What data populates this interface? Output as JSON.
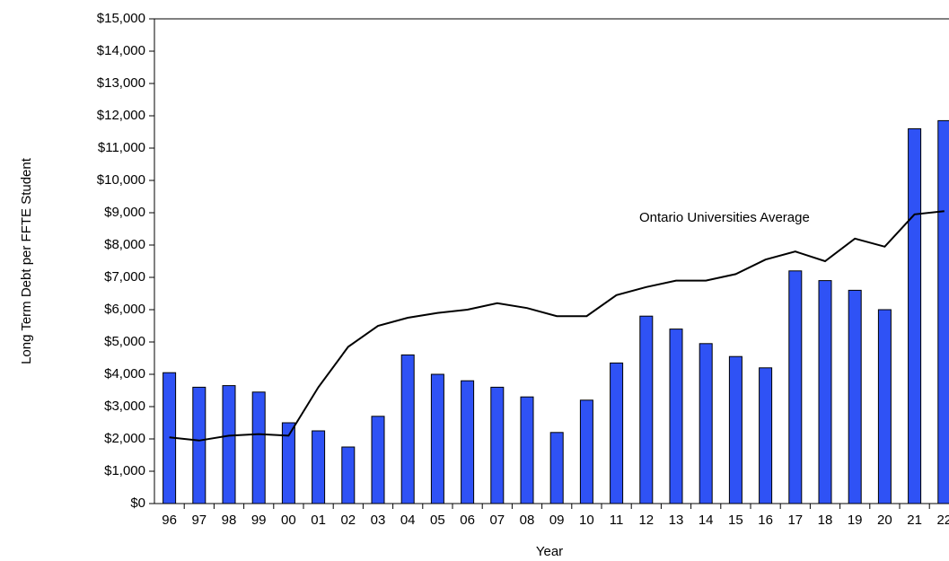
{
  "chart_data": {
    "type": "bar",
    "x_label": "Year",
    "y_label": "Long Term Debt per FFTE Student",
    "categories": [
      "96",
      "97",
      "98",
      "99",
      "00",
      "01",
      "02",
      "03",
      "04",
      "05",
      "06",
      "07",
      "08",
      "09",
      "10",
      "11",
      "12",
      "13",
      "14",
      "15",
      "16",
      "17",
      "18",
      "19",
      "20",
      "21",
      "22"
    ],
    "series": [
      {
        "color": "#2f52f5",
        "type": "bar",
        "values": [
          4050,
          3600,
          3650,
          3450,
          2500,
          2250,
          1750,
          2700,
          4600,
          4000,
          3800,
          3600,
          3300,
          2200,
          3200,
          4350,
          5800,
          5400,
          4950,
          4550,
          4200,
          7200,
          6900,
          6600,
          6000,
          11600,
          11850
        ]
      },
      {
        "name": "Ontario Universities Average",
        "color": "#000000",
        "type": "line",
        "values": [
          2050,
          1950,
          2100,
          2150,
          2100,
          3600,
          4850,
          5500,
          5750,
          5900,
          6000,
          6200,
          6050,
          5800,
          5800,
          6450,
          6700,
          6900,
          6900,
          7100,
          7550,
          7800,
          7500,
          8200,
          7950,
          8950,
          9050
        ]
      }
    ],
    "ylim": [
      0,
      15000
    ],
    "yticks": [
      {
        "value": 0,
        "label": "$0"
      },
      {
        "value": 1000,
        "label": "$1,000"
      },
      {
        "value": 2000,
        "label": "$2,000"
      },
      {
        "value": 3000,
        "label": "$3,000"
      },
      {
        "value": 4000,
        "label": "$4,000"
      },
      {
        "value": 5000,
        "label": "$5,000"
      },
      {
        "value": 6000,
        "label": "$6,000"
      },
      {
        "value": 7000,
        "label": "$7,000"
      },
      {
        "value": 8000,
        "label": "$8,000"
      },
      {
        "value": 9000,
        "label": "$9,000"
      },
      {
        "value": 10000,
        "label": "$10,000"
      },
      {
        "value": 11000,
        "label": "$11,000"
      },
      {
        "value": 12000,
        "label": "$12,000"
      },
      {
        "value": 13000,
        "label": "$13,000"
      },
      {
        "value": 14000,
        "label": "$14,000"
      },
      {
        "value": 15000,
        "label": "$15,000"
      }
    ],
    "grid": false
  }
}
